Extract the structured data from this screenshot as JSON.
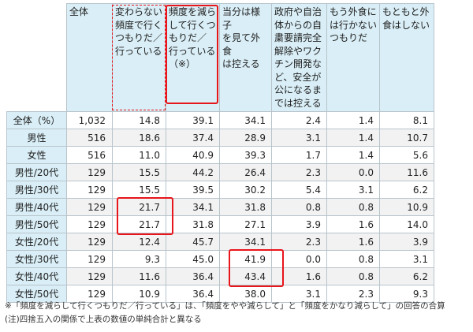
{
  "chart_data": {
    "type": "table",
    "columns": [
      "全体",
      "変わらない\n頻度で行く\nつもりだ／\n行っている",
      "頻度を減ら\nして行くつ\nもりだ／\n行っている\n（※）",
      "当分は様子\nを見て外食\nは控える",
      "政府や自治\n体からの自\n粛要請完全\n解除やワク\nチン開発な\nど、安全が\n公になるま\nでは控える",
      "もう外食に\nは行かない\nつもりだ",
      "もともと外\n食はしない"
    ],
    "rows": [
      {
        "label": "全体（%）",
        "values": [
          "1,032",
          "14.8",
          "39.1",
          "34.1",
          "2.4",
          "1.4",
          "8.1"
        ]
      },
      {
        "label": "男性",
        "values": [
          "516",
          "18.6",
          "37.4",
          "28.9",
          "3.1",
          "1.4",
          "10.7"
        ]
      },
      {
        "label": "女性",
        "values": [
          "516",
          "11.0",
          "40.9",
          "39.3",
          "1.7",
          "1.4",
          "5.6"
        ]
      },
      {
        "label": "男性/20代",
        "values": [
          "129",
          "15.5",
          "44.2",
          "26.4",
          "2.3",
          "0.0",
          "11.6"
        ]
      },
      {
        "label": "男性/30代",
        "values": [
          "129",
          "15.5",
          "39.5",
          "30.2",
          "5.4",
          "3.1",
          "6.2"
        ]
      },
      {
        "label": "男性/40代",
        "values": [
          "129",
          "21.7",
          "34.1",
          "31.8",
          "0.8",
          "0.8",
          "10.9"
        ]
      },
      {
        "label": "男性/50代",
        "values": [
          "129",
          "21.7",
          "31.8",
          "27.1",
          "3.9",
          "1.6",
          "14.0"
        ]
      },
      {
        "label": "女性/20代",
        "values": [
          "129",
          "12.4",
          "45.7",
          "34.1",
          "2.3",
          "1.6",
          "3.9"
        ]
      },
      {
        "label": "女性/30代",
        "values": [
          "129",
          "9.3",
          "45.0",
          "41.9",
          "0.0",
          "0.8",
          "3.1"
        ]
      },
      {
        "label": "女性/40代",
        "values": [
          "129",
          "11.6",
          "36.4",
          "43.4",
          "1.6",
          "0.8",
          "6.2"
        ]
      },
      {
        "label": "女性/50代",
        "values": [
          "129",
          "10.9",
          "36.4",
          "38.0",
          "3.1",
          "2.3",
          "9.3"
        ]
      }
    ]
  },
  "notes": [
    "※「頻度を減らして行くつもりだ／行っている」は、「頻度をやや減らして」と「頻度をかなり減らして」の回答の合算",
    "(注)四捨五入の関係で上表の数値の単純合計と異なる"
  ],
  "colors": {
    "highlight": "#e8151b",
    "header_bg": "#d9eef6"
  }
}
